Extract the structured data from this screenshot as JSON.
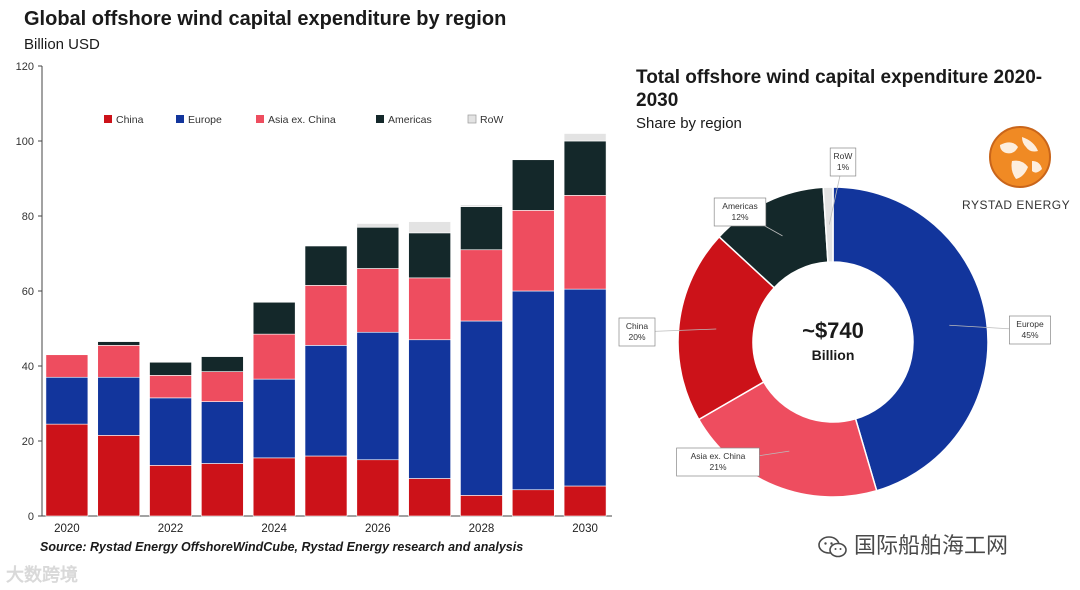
{
  "bar_chart_title": "Global offshore wind capital expenditure by region",
  "bar_chart_subtitle": "Billion USD",
  "pie_chart_title": "Total offshore wind capital expenditure 2020-2030",
  "pie_chart_subtitle": "Share by region",
  "pie_center": {
    "value": "~$740",
    "label": "Billion"
  },
  "logo_text": "RYSTAD ENERGY",
  "source": "Source: Rystad Energy OffshoreWindCube, Rystad Energy research and analysis",
  "watermark_left": "大数跨境",
  "watermark_right": "国际船舶海工网",
  "colors": {
    "China": "#cc1219",
    "Europe": "#12359c",
    "Asia ex. China": "#ee4d5f",
    "Americas": "#14282a",
    "RoW": "#e3e3e3"
  },
  "chart_data": [
    {
      "type": "bar",
      "stacked": true,
      "title": "Global offshore wind capital expenditure by region",
      "ylabel": "Billion USD",
      "ylim": [
        0,
        120
      ],
      "yticks": [
        0,
        20,
        40,
        60,
        80,
        100,
        120
      ],
      "ytick_labels": [
        "0",
        "20",
        "40",
        "60",
        "80",
        "100",
        "120"
      ],
      "categories": [
        "2020",
        "2021",
        "2022",
        "2023",
        "2024",
        "2025",
        "2026",
        "2027",
        "2028",
        "2029",
        "2030"
      ],
      "xtick_labels": [
        "2020",
        "",
        "2022",
        "",
        "2024",
        "",
        "2026",
        "",
        "2028",
        "",
        "2030"
      ],
      "legend_position": "top",
      "series": [
        {
          "name": "China",
          "values": [
            24.5,
            21.5,
            13.5,
            14,
            15.5,
            16,
            15,
            10,
            5.5,
            7,
            8
          ]
        },
        {
          "name": "Europe",
          "values": [
            12.5,
            15.5,
            18,
            16.5,
            21,
            29.5,
            34,
            37,
            46.5,
            53,
            52.5
          ]
        },
        {
          "name": "Asia ex. China",
          "values": [
            6,
            8.5,
            6,
            8,
            12,
            16,
            17,
            16.5,
            19,
            21.5,
            25
          ]
        },
        {
          "name": "Americas",
          "values": [
            0,
            1,
            3.5,
            4,
            8.5,
            10.5,
            11,
            12,
            11.5,
            13.5,
            14.5
          ]
        },
        {
          "name": "RoW",
          "values": [
            0,
            0,
            0,
            0,
            0,
            0,
            1,
            3,
            0.5,
            0,
            2
          ]
        }
      ]
    },
    {
      "type": "pie",
      "donut": true,
      "title": "Total offshore wind capital expenditure 2020-2030",
      "subtitle": "Share by region",
      "center_label": "~$740 Billion",
      "slices": [
        {
          "label": "Europe",
          "value": 45,
          "label_text": "Europe\n45%"
        },
        {
          "label": "Asia ex. China",
          "value": 21,
          "label_text": "Asia ex. China\n21%"
        },
        {
          "label": "China",
          "value": 20,
          "label_text": "China\n20%"
        },
        {
          "label": "Americas",
          "value": 12,
          "label_text": "Americas\n12%"
        },
        {
          "label": "RoW",
          "value": 1,
          "label_text": "RoW\n1%"
        }
      ]
    }
  ]
}
